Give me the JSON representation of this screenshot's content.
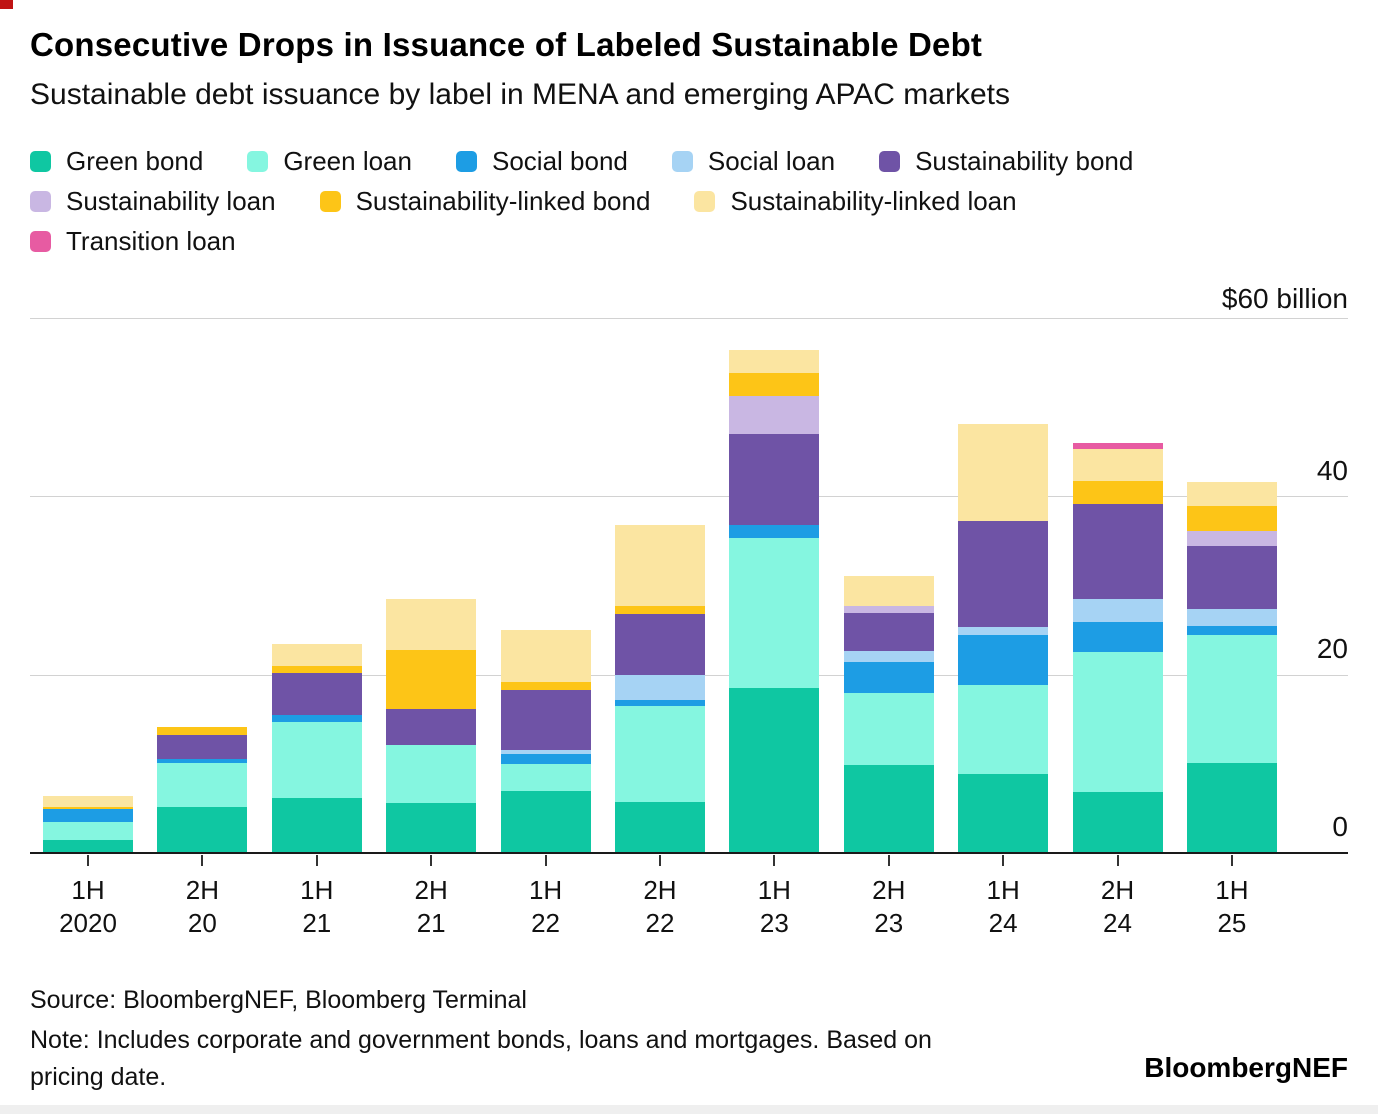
{
  "header": {
    "title": "Consecutive Drops in Issuance of Labeled Sustainable Debt",
    "subtitle": "Sustainable debt issuance by label in MENA and emerging APAC markets"
  },
  "legend_rows": [
    [
      {
        "label": "Green bond",
        "color": "#0fc7a2"
      },
      {
        "label": "Green loan",
        "color": "#85f6e0"
      },
      {
        "label": "Social bond",
        "color": "#1d9de4"
      },
      {
        "label": "Social loan",
        "color": "#a6d3f4"
      },
      {
        "label": "Sustainability bond",
        "color": "#6f53a6"
      }
    ],
    [
      {
        "label": "Sustainability loan",
        "color": "#c9b7e3"
      },
      {
        "label": "Sustainability-linked bond",
        "color": "#fdc517"
      },
      {
        "label": "Sustainability-linked loan",
        "color": "#fbe5a1"
      }
    ],
    [
      {
        "label": "Transition loan",
        "color": "#e75ba2"
      }
    ]
  ],
  "y_axis": {
    "top_label": "$60 billion",
    "tick_labels": [
      "40",
      "20",
      "0"
    ]
  },
  "chart_data": {
    "type": "bar",
    "stacked": true,
    "unit": "$ billion",
    "ylim": [
      0,
      60
    ],
    "gridlines": [
      60,
      40,
      20
    ],
    "categories": [
      {
        "line1": "1H",
        "line2": "2020"
      },
      {
        "line1": "2H",
        "line2": "20"
      },
      {
        "line1": "1H",
        "line2": "21"
      },
      {
        "line1": "2H",
        "line2": "21"
      },
      {
        "line1": "1H",
        "line2": "22"
      },
      {
        "line1": "2H",
        "line2": "22"
      },
      {
        "line1": "1H",
        "line2": "23"
      },
      {
        "line1": "2H",
        "line2": "23"
      },
      {
        "line1": "1H",
        "line2": "24"
      },
      {
        "line1": "2H",
        "line2": "24"
      },
      {
        "line1": "1H",
        "line2": "25"
      }
    ],
    "series": [
      {
        "name": "Green bond",
        "color": "#0fc7a2",
        "values": [
          1.5,
          5.2,
          6.2,
          5.6,
          7.0,
          5.7,
          18.5,
          9.9,
          8.9,
          6.8,
          10.1
        ]
      },
      {
        "name": "Green loan",
        "color": "#85f6e0",
        "values": [
          2.0,
          4.9,
          8.5,
          6.5,
          3.0,
          10.8,
          16.8,
          8.0,
          10.0,
          15.7,
          14.4
        ]
      },
      {
        "name": "Social bond",
        "color": "#1d9de4",
        "values": [
          1.4,
          0.4,
          0.8,
          0,
          1.1,
          0.7,
          1.5,
          3.5,
          5.6,
          3.4,
          1.0
        ]
      },
      {
        "name": "Social loan",
        "color": "#a6d3f4",
        "values": [
          0,
          0,
          0,
          0,
          0.4,
          2.8,
          0,
          1.3,
          0.9,
          2.6,
          1.9
        ]
      },
      {
        "name": "Sustainability bond",
        "color": "#6f53a6",
        "values": [
          0,
          2.7,
          4.7,
          4.0,
          6.8,
          6.8,
          10.2,
          4.2,
          11.8,
          10.7,
          7.0
        ]
      },
      {
        "name": "Sustainability loan",
        "color": "#c9b7e3",
        "values": [
          0,
          0,
          0,
          0,
          0,
          0,
          4.3,
          0.8,
          0,
          0,
          1.7
        ]
      },
      {
        "name": "Sustainability-linked bond",
        "color": "#fdc517",
        "values": [
          0.3,
          0.9,
          0.8,
          6.7,
          0.9,
          0.9,
          2.5,
          0,
          0,
          2.5,
          2.8
        ]
      },
      {
        "name": "Sustainability-linked loan",
        "color": "#fbe5a1",
        "values": [
          1.2,
          0,
          2.5,
          5.7,
          5.8,
          9.1,
          2.6,
          3.4,
          10.9,
          3.6,
          2.7
        ]
      },
      {
        "name": "Transition loan",
        "color": "#e75ba2",
        "values": [
          0,
          0,
          0,
          0,
          0,
          0,
          0,
          0,
          0,
          0.7,
          0
        ]
      }
    ],
    "totals": [
      6.4,
      14.1,
      23.5,
      28.5,
      25.0,
      36.8,
      56.4,
      31.1,
      48.1,
      46.0,
      41.6
    ]
  },
  "footer": {
    "source": "Source: BloombergNEF, Bloomberg Terminal",
    "note_line1": "Note: Includes corporate and government bonds, loans and mortgages. Based on",
    "note_line2": "pricing date.",
    "brand": "BloombergNEF"
  }
}
